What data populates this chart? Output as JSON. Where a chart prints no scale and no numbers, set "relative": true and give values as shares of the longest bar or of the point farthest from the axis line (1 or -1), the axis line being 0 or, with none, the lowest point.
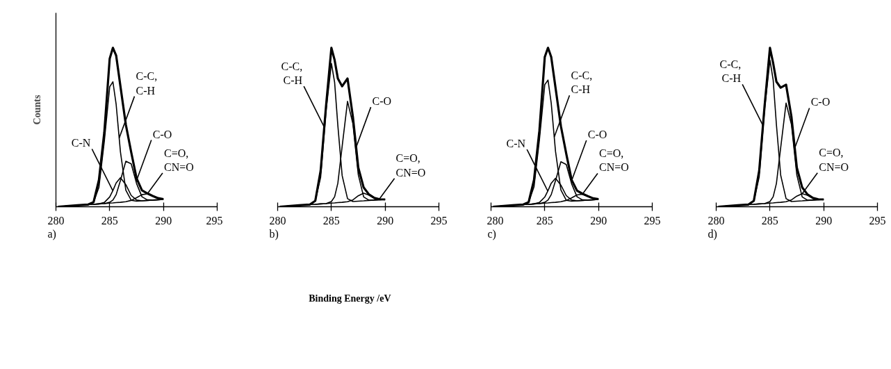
{
  "chart_data": [
    {
      "type": "line",
      "relative": true,
      "ylabel": "Counts",
      "xlim": [
        280,
        295
      ],
      "xticks": [
        280,
        285,
        290,
        295
      ],
      "annotations": [
        "a)"
      ],
      "x": [
        280.2,
        281,
        282,
        283,
        283.5,
        284,
        284.5,
        285,
        285.3,
        285.6,
        286,
        286.5,
        287,
        287.5,
        288,
        288.5,
        289,
        289.5,
        290
      ],
      "series": [
        {
          "color": "#000000",
          "values": [
            0,
            0.004,
            0.009,
            0.014,
            0.029,
            0.169,
            0.469,
            0.932,
            1.0,
            0.952,
            0.758,
            0.517,
            0.343,
            0.179,
            0.103,
            0.084,
            0.068,
            0.054,
            0.048
          ]
        },
        {
          "name": "C-C, C-H",
          "color": "#000000",
          "values": [
            0,
            0.004,
            0.009,
            0.014,
            0.029,
            0.123,
            0.413,
            0.755,
            0.786,
            0.644,
            0.345,
            0.104,
            0.041,
            0.035,
            0.037,
            0.04,
            0.042,
            0.044,
            0.046
          ]
        },
        {
          "name": "C-N",
          "color": "#000000",
          "values": [
            0,
            0.004,
            0.009,
            0.014,
            0.015,
            0.018,
            0.027,
            0.062,
            0.102,
            0.15,
            0.183,
            0.139,
            0.071,
            0.042,
            0.037,
            0.04,
            0.042,
            0.044,
            0.046
          ]
        },
        {
          "name": "C-O",
          "color": "#000000",
          "values": [
            0,
            0.004,
            0.009,
            0.014,
            0.015,
            0.018,
            0.02,
            0.028,
            0.042,
            0.076,
            0.165,
            0.286,
            0.27,
            0.146,
            0.063,
            0.043,
            0.042,
            0.044,
            0.046
          ]
        },
        {
          "name": "C=O, CN=O",
          "color": "#000000",
          "values": [
            0,
            0.004,
            0.009,
            0.014,
            0.015,
            0.018,
            0.02,
            0.023,
            0.024,
            0.026,
            0.028,
            0.032,
            0.04,
            0.057,
            0.076,
            0.081,
            0.068,
            0.054,
            0.048
          ]
        }
      ]
    },
    {
      "type": "line",
      "relative": true,
      "xlabel": "Binding Energy /eV",
      "xlim": [
        280,
        295
      ],
      "xticks": [
        280,
        285,
        290,
        295
      ],
      "annotations": [
        "b)"
      ],
      "x": [
        280.2,
        281,
        282,
        283,
        283.5,
        284,
        284.5,
        285,
        285.3,
        285.6,
        286,
        286.5,
        287,
        287.5,
        288,
        288.5,
        289,
        289.5,
        290
      ],
      "series": [
        {
          "color": "#000000",
          "values": [
            0,
            0.004,
            0.009,
            0.014,
            0.037,
            0.227,
            0.633,
            1.0,
            0.923,
            0.807,
            0.758,
            0.807,
            0.565,
            0.246,
            0.121,
            0.077,
            0.055,
            0.047,
            0.046
          ]
        },
        {
          "name": "C-C, C-H",
          "color": "#000000",
          "values": [
            0,
            0.004,
            0.009,
            0.014,
            0.037,
            0.186,
            0.602,
            0.902,
            0.782,
            0.511,
            0.196,
            0.051,
            0.033,
            0.035,
            0.037,
            0.04,
            0.042,
            0.044,
            0.046
          ]
        },
        {
          "name": "C-O",
          "color": "#000000",
          "values": [
            0,
            0.004,
            0.009,
            0.014,
            0.015,
            0.018,
            0.02,
            0.033,
            0.063,
            0.148,
            0.38,
            0.663,
            0.522,
            0.202,
            0.062,
            0.041,
            0.042,
            0.044,
            0.046
          ]
        },
        {
          "name": "C=O, CN=O",
          "color": "#000000",
          "values": [
            0,
            0.004,
            0.009,
            0.014,
            0.015,
            0.018,
            0.02,
            0.023,
            0.024,
            0.026,
            0.028,
            0.032,
            0.043,
            0.069,
            0.085,
            0.073,
            0.053,
            0.046,
            0.046
          ]
        }
      ]
    },
    {
      "type": "line",
      "relative": true,
      "xlim": [
        280,
        295
      ],
      "xticks": [
        280,
        285,
        290,
        295
      ],
      "annotations": [
        "c)"
      ],
      "x": [
        280.2,
        281,
        282,
        283,
        283.5,
        284,
        284.5,
        285,
        285.3,
        285.6,
        286,
        286.5,
        287,
        287.5,
        288,
        288.5,
        289,
        289.5,
        290
      ],
      "series": [
        {
          "color": "#000000",
          "values": [
            0,
            0.004,
            0.009,
            0.014,
            0.029,
            0.169,
            0.478,
            0.942,
            1.0,
            0.942,
            0.749,
            0.507,
            0.333,
            0.169,
            0.101,
            0.082,
            0.067,
            0.053,
            0.048
          ]
        },
        {
          "name": "C-C, C-H",
          "color": "#000000",
          "values": [
            0,
            0.004,
            0.009,
            0.014,
            0.029,
            0.126,
            0.42,
            0.768,
            0.797,
            0.652,
            0.348,
            0.105,
            0.041,
            0.035,
            0.037,
            0.04,
            0.042,
            0.044,
            0.046
          ]
        },
        {
          "name": "C-N",
          "color": "#000000",
          "values": [
            0,
            0.004,
            0.009,
            0.014,
            0.015,
            0.018,
            0.027,
            0.061,
            0.101,
            0.148,
            0.179,
            0.136,
            0.07,
            0.042,
            0.037,
            0.04,
            0.042,
            0.044,
            0.046
          ]
        },
        {
          "name": "C-O",
          "color": "#000000",
          "values": [
            0,
            0.004,
            0.009,
            0.014,
            0.015,
            0.018,
            0.02,
            0.028,
            0.042,
            0.076,
            0.164,
            0.283,
            0.266,
            0.144,
            0.063,
            0.043,
            0.042,
            0.044,
            0.046
          ]
        },
        {
          "name": "C=O, CN=O",
          "color": "#000000",
          "values": [
            0,
            0.004,
            0.009,
            0.014,
            0.015,
            0.018,
            0.02,
            0.023,
            0.024,
            0.026,
            0.028,
            0.032,
            0.04,
            0.056,
            0.074,
            0.079,
            0.067,
            0.053,
            0.048
          ]
        }
      ]
    },
    {
      "type": "line",
      "relative": true,
      "xlim": [
        280,
        295
      ],
      "xticks": [
        280,
        285,
        290,
        295
      ],
      "annotations": [
        "d)"
      ],
      "x": [
        280.2,
        281,
        282,
        283,
        283.5,
        284,
        284.5,
        285,
        285.3,
        285.6,
        286,
        286.5,
        287,
        287.5,
        288,
        288.5,
        289,
        289.5,
        290
      ],
      "series": [
        {
          "color": "#000000",
          "values": [
            0,
            0.004,
            0.009,
            0.014,
            0.037,
            0.227,
            0.633,
            1.0,
            0.903,
            0.787,
            0.749,
            0.768,
            0.565,
            0.246,
            0.121,
            0.077,
            0.055,
            0.047,
            0.046
          ]
        },
        {
          "name": "C-C, C-H",
          "color": "#000000",
          "values": [
            0,
            0.004,
            0.009,
            0.014,
            0.037,
            0.188,
            0.613,
            0.923,
            0.797,
            0.517,
            0.198,
            0.051,
            0.033,
            0.035,
            0.037,
            0.04,
            0.042,
            0.044,
            0.046
          ]
        },
        {
          "name": "C-O",
          "color": "#000000",
          "values": [
            0,
            0.004,
            0.009,
            0.014,
            0.015,
            0.018,
            0.02,
            0.033,
            0.063,
            0.146,
            0.372,
            0.652,
            0.517,
            0.2,
            0.062,
            0.041,
            0.042,
            0.044,
            0.046
          ]
        },
        {
          "name": "C=O, CN=O",
          "color": "#000000",
          "values": [
            0,
            0.004,
            0.009,
            0.014,
            0.015,
            0.018,
            0.02,
            0.023,
            0.024,
            0.026,
            0.028,
            0.032,
            0.043,
            0.067,
            0.082,
            0.072,
            0.053,
            0.046,
            0.046
          ]
        }
      ]
    }
  ]
}
